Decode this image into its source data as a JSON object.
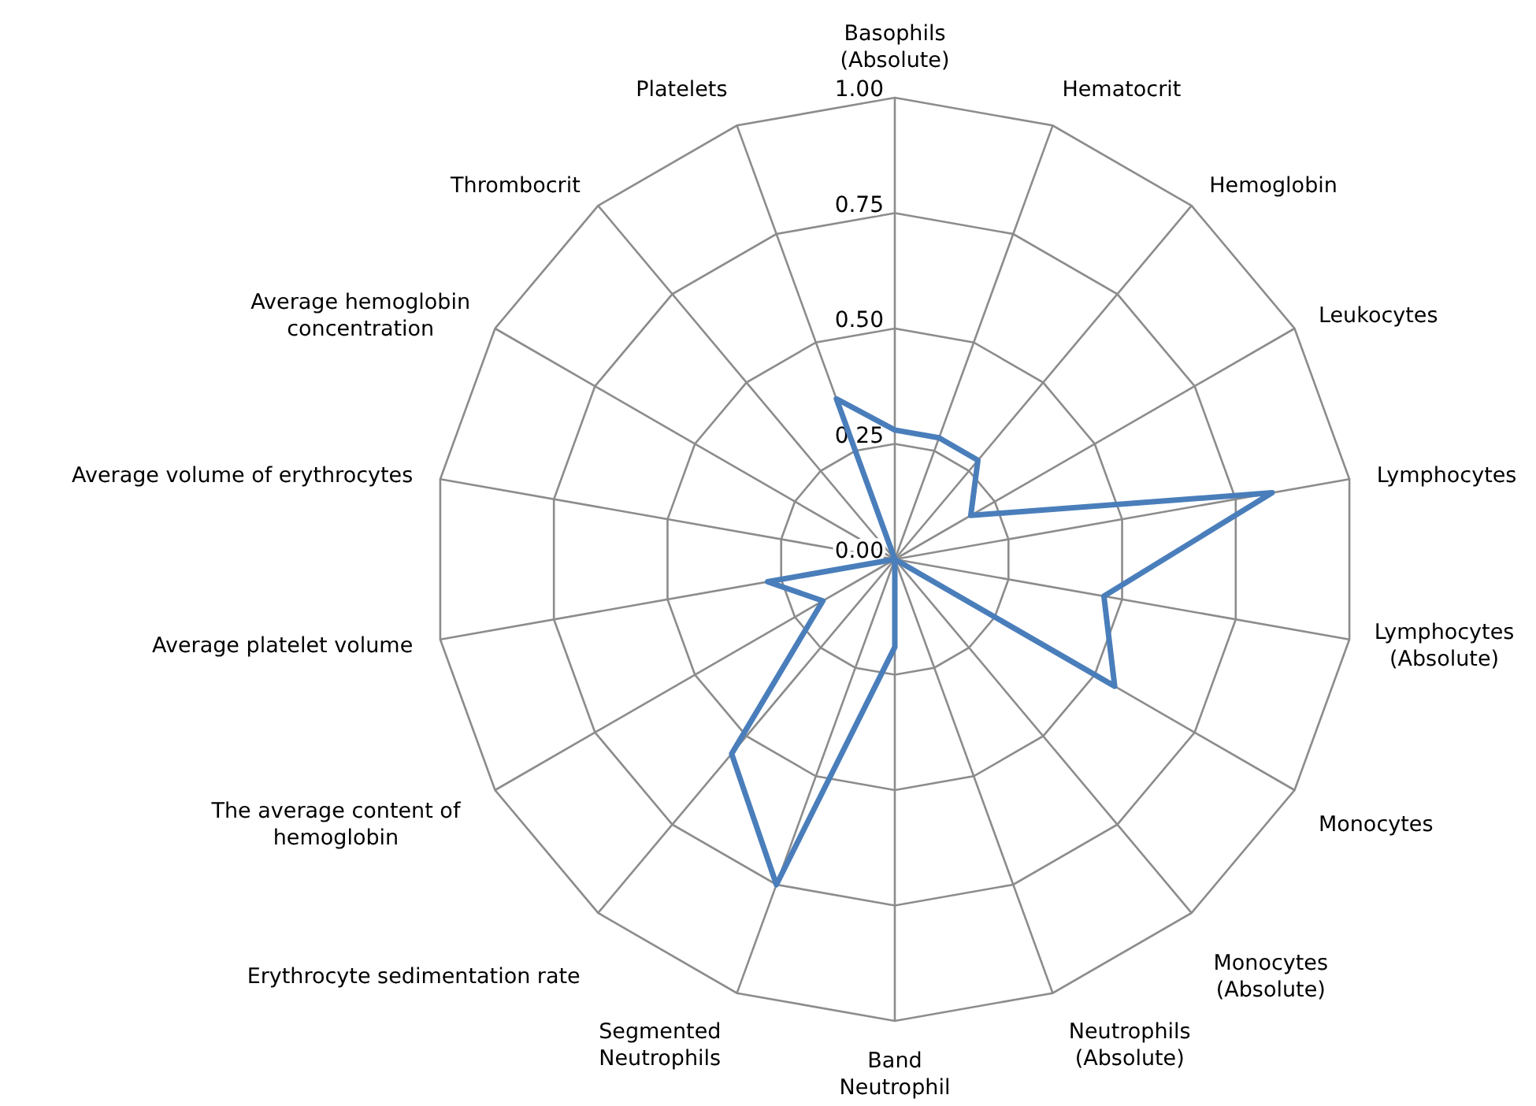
{
  "chart_data": {
    "type": "radar",
    "categories": [
      "Basophils (Absolute)",
      "Hematocrit",
      "Hemoglobin",
      "Leukocytes",
      "Lymphocytes",
      "Lymphocytes (Absolute)",
      "Monocytes",
      "Monocytes (Absolute)",
      "Neutrophils (Absolute)",
      "Band Neutrophil",
      "Segmented Neutrophils",
      "Erythrocyte sedimentation rate",
      "The average content of hemoglobin",
      "Average platelet volume",
      "Average volume of erythrocytes",
      "Average hemoglobin concentration",
      "Thrombocrit",
      "Platelets"
    ],
    "series": [
      {
        "color": "#4a7ebb",
        "values": [
          0.28,
          0.28,
          0.28,
          0.19,
          0.83,
          0.46,
          0.55,
          0,
          0,
          0.19,
          0.75,
          0.55,
          0.18,
          0.28,
          0,
          0,
          0,
          0.37
        ]
      }
    ],
    "ylim": [
      0,
      1
    ],
    "yticks": [
      {
        "value": 0,
        "label": "0.00"
      },
      {
        "value": 0.25,
        "label": "0.25"
      },
      {
        "value": 0.5,
        "label": "0.50"
      },
      {
        "value": 0.75,
        "label": "0.75"
      },
      {
        "value": 1,
        "label": "1.00"
      }
    ],
    "grid": true
  }
}
